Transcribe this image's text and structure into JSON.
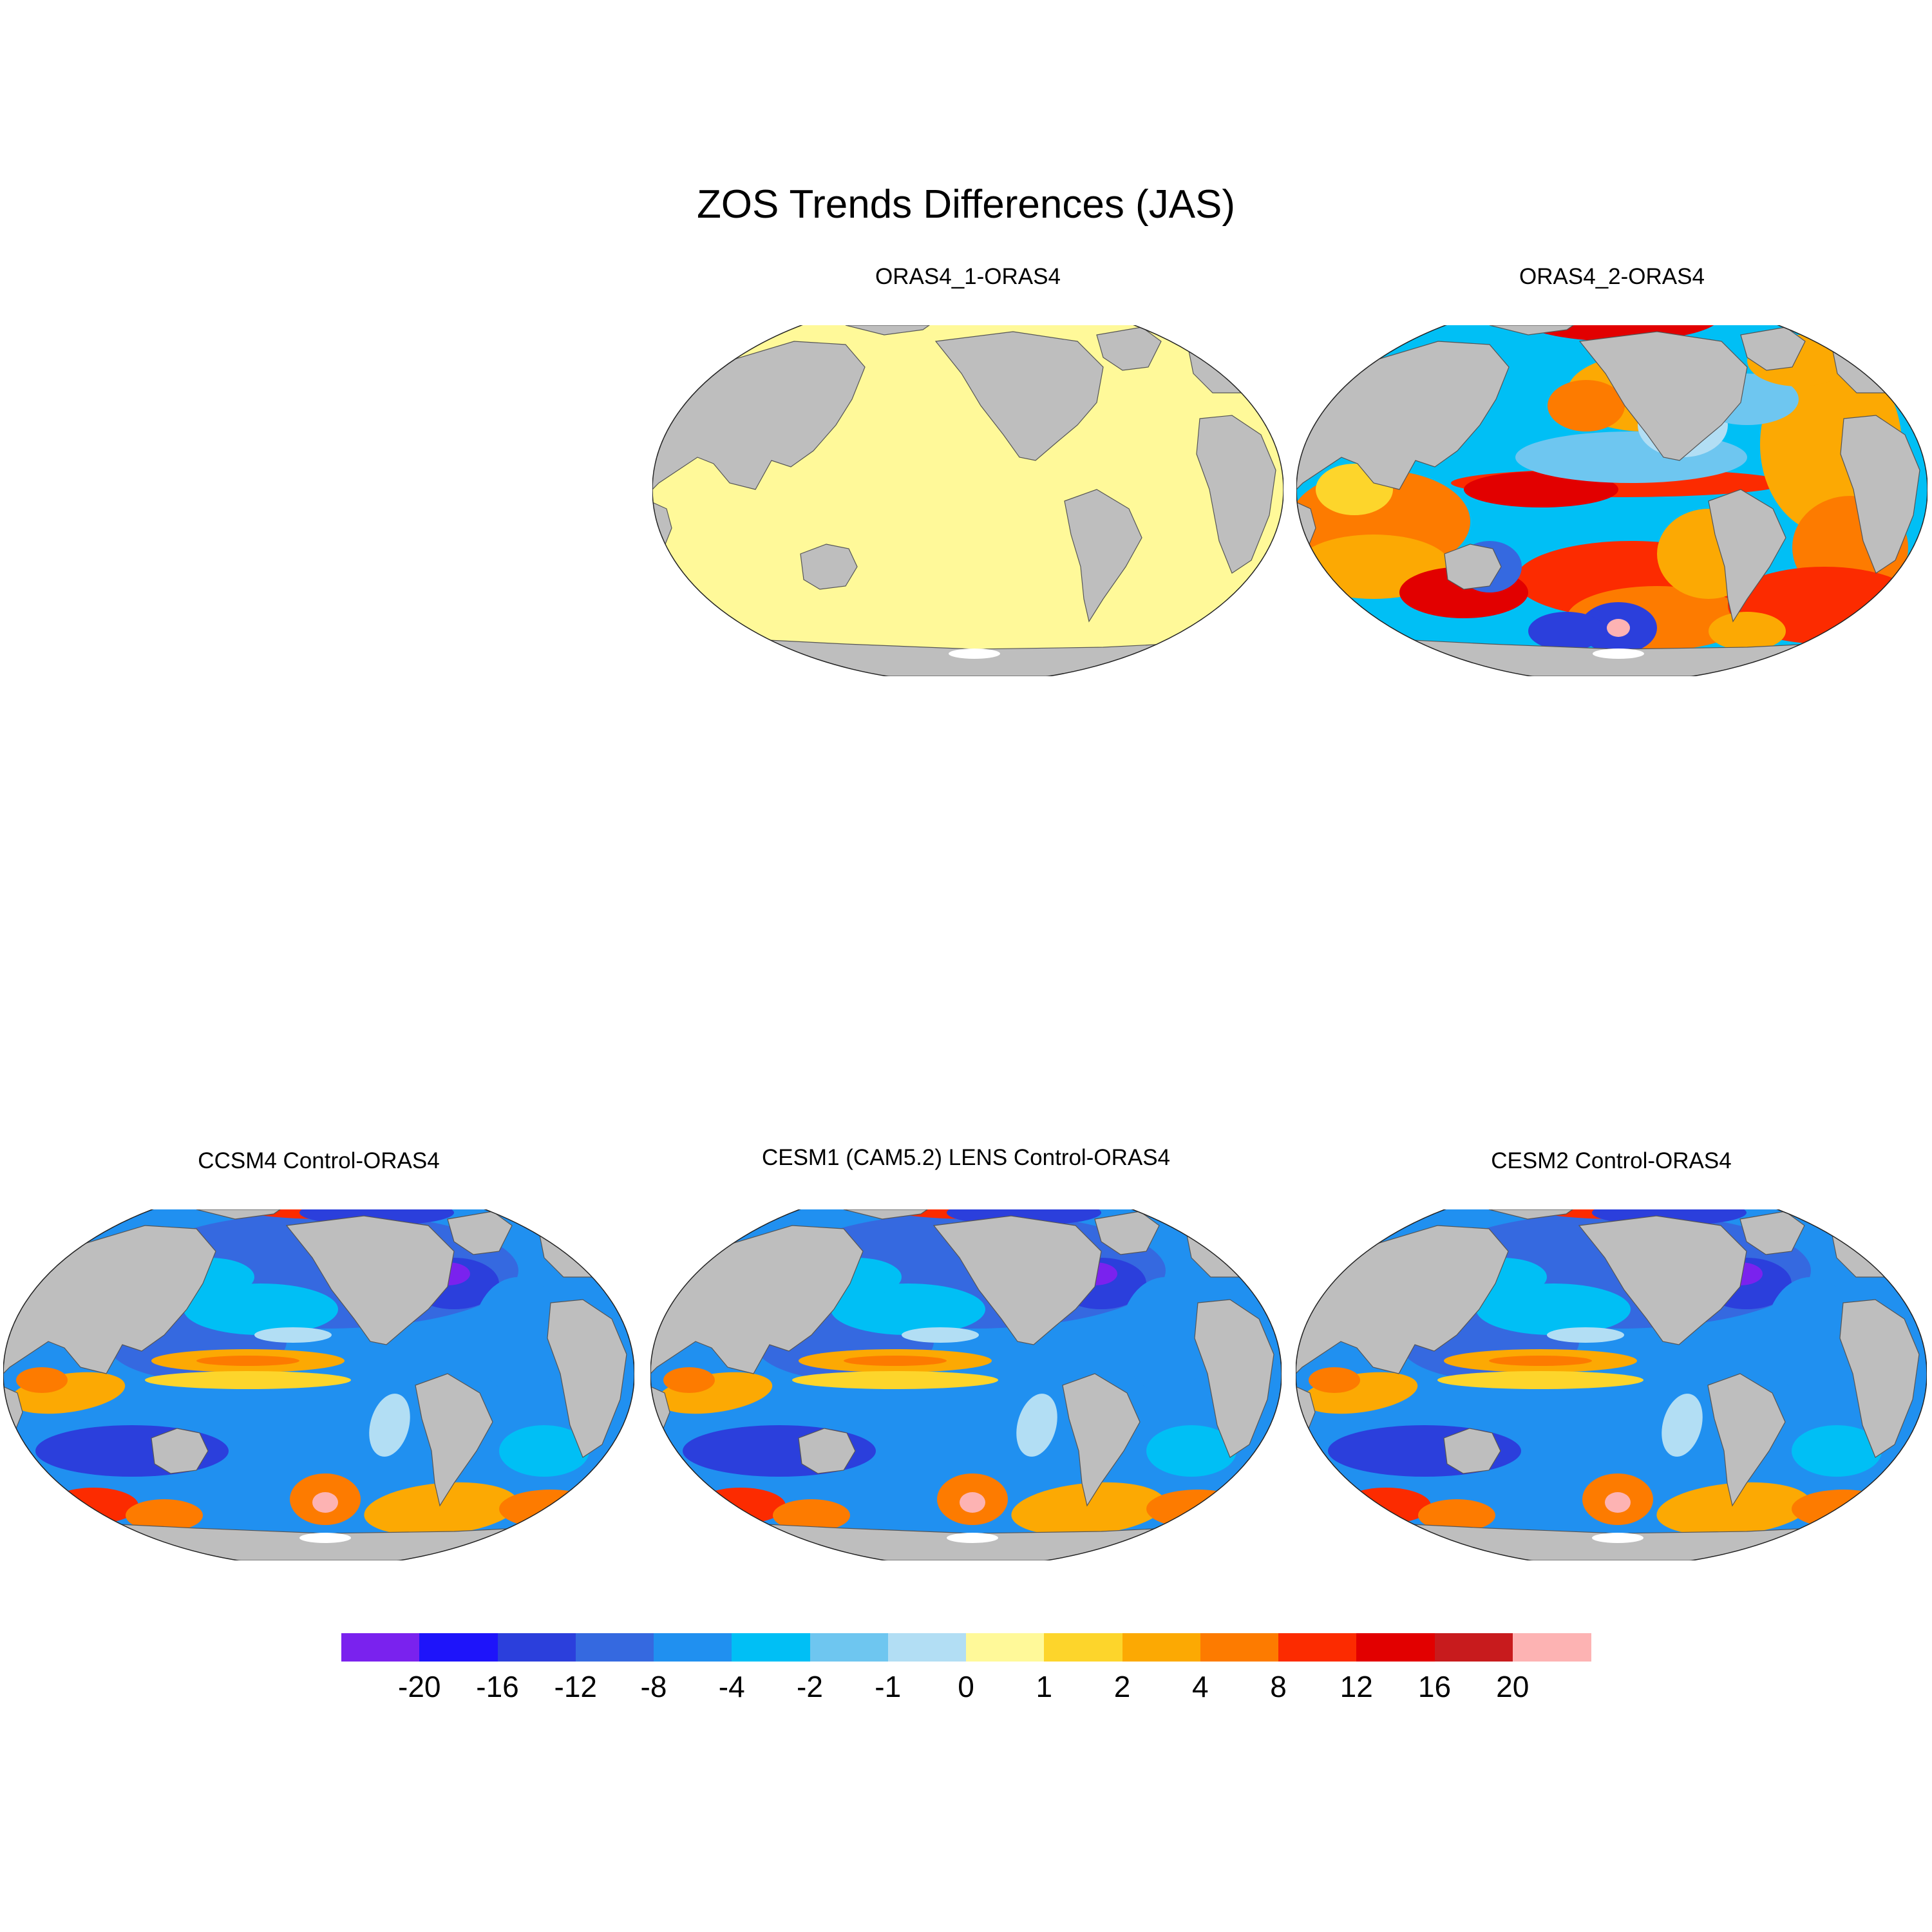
{
  "title": "ZOS Trends Differences (JAS)",
  "panels": [
    {
      "title": "ORAS4_1-ORAS4",
      "pattern": "uniform"
    },
    {
      "title": "ORAS4_2-ORAS4",
      "pattern": "oras4_2"
    },
    {
      "title": "CCSM4 Control-ORAS4",
      "pattern": "model"
    },
    {
      "title": "CESM1 (CAM5.2) LENS Control-ORAS4",
      "pattern": "model"
    },
    {
      "title": "CESM2 Control-ORAS4",
      "pattern": "model"
    }
  ],
  "colorbar": {
    "levels": [
      "-20",
      "-16",
      "-12",
      "-8",
      "-4",
      "-2",
      "-1",
      "0",
      "1",
      "2",
      "4",
      "8",
      "12",
      "16",
      "20"
    ],
    "colors": [
      "#7a22ee",
      "#1e14fa",
      "#2b3fdc",
      "#3569e0",
      "#2090f0",
      "#00bff5",
      "#6ec6f0",
      "#b2def4",
      "#fff999",
      "#fdd52b",
      "#fca903",
      "#fd7b00",
      "#fc2b00",
      "#e20000",
      "#c81b1d",
      "#fdb3b3"
    ]
  },
  "colors": {
    "land": "#bebebe",
    "missing": "#ffffff"
  }
}
